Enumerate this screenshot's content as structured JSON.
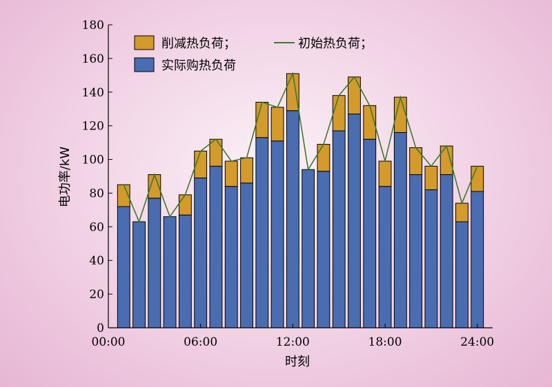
{
  "chart_data": {
    "type": "bar",
    "stacked": true,
    "x": [
      1,
      2,
      3,
      4,
      5,
      6,
      7,
      8,
      9,
      10,
      11,
      12,
      13,
      14,
      15,
      16,
      17,
      18,
      19,
      20,
      21,
      22,
      23,
      24
    ],
    "series": [
      {
        "name": "实际购热负荷",
        "color": "#4a6db1",
        "values": [
          72,
          63,
          77,
          66,
          67,
          89,
          96,
          84,
          86,
          113,
          111,
          129,
          94,
          93,
          117,
          127,
          112,
          84,
          116,
          91,
          82,
          91,
          63,
          81
        ]
      },
      {
        "name": "削减热负荷；",
        "color": "#d39a2c",
        "values": [
          13,
          0,
          14,
          0,
          12,
          16,
          16,
          15,
          15,
          21,
          20,
          22,
          0,
          16,
          21,
          22,
          20,
          15,
          21,
          16,
          14,
          17,
          11,
          15
        ]
      }
    ],
    "line": {
      "name": "初始热负荷；",
      "color": "#3d7a28",
      "values": [
        85,
        63,
        91,
        66,
        79,
        105,
        112,
        99,
        101,
        134,
        131,
        151,
        94,
        109,
        138,
        149,
        132,
        99,
        137,
        107,
        96,
        108,
        74,
        96
      ]
    },
    "xticks": [
      0,
      6,
      12,
      18,
      24
    ],
    "xtick_labels": [
      "00:00",
      "06:00",
      "12:00",
      "18:00",
      "24:00"
    ],
    "xlim": [
      0,
      25
    ],
    "ylim": [
      0,
      180
    ],
    "yticks": [
      0,
      20,
      40,
      60,
      80,
      100,
      120,
      140,
      160,
      180
    ],
    "xlabel": "时刻",
    "ylabel": "电功率/kW",
    "legend_position": "top-left",
    "grid": false
  }
}
